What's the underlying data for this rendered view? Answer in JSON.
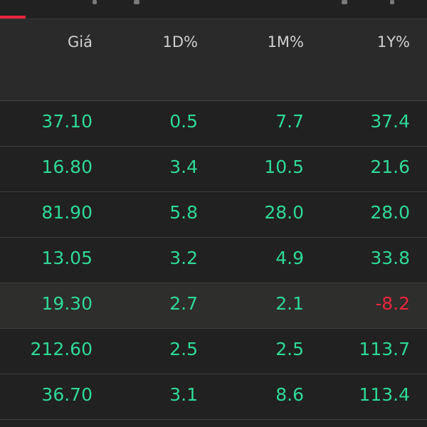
{
  "header": {
    "columns": [
      "Giá",
      "1D%",
      "1M%",
      "1Y%"
    ]
  },
  "colors": {
    "positive": "#2fd996",
    "negative": "#e8263c",
    "accent": "#e8263c"
  },
  "rows": [
    {
      "gia": "37.10",
      "d1": "0.5",
      "m1": "7.7",
      "y1": "37.4",
      "y1_negative": false,
      "highlighted": false
    },
    {
      "gia": "16.80",
      "d1": "3.4",
      "m1": "10.5",
      "y1": "21.6",
      "y1_negative": false,
      "highlighted": false
    },
    {
      "gia": "81.90",
      "d1": "5.8",
      "m1": "28.0",
      "y1": "28.0",
      "y1_negative": false,
      "highlighted": false
    },
    {
      "gia": "13.05",
      "d1": "3.2",
      "m1": "4.9",
      "y1": "33.8",
      "y1_negative": false,
      "highlighted": false
    },
    {
      "gia": "19.30",
      "d1": "2.7",
      "m1": "2.1",
      "y1": "-8.2",
      "y1_negative": true,
      "highlighted": true
    },
    {
      "gia": "212.60",
      "d1": "2.5",
      "m1": "2.5",
      "y1": "113.7",
      "y1_negative": false,
      "highlighted": false
    },
    {
      "gia": "36.70",
      "d1": "3.1",
      "m1": "8.6",
      "y1": "113.4",
      "y1_negative": false,
      "highlighted": false
    }
  ]
}
